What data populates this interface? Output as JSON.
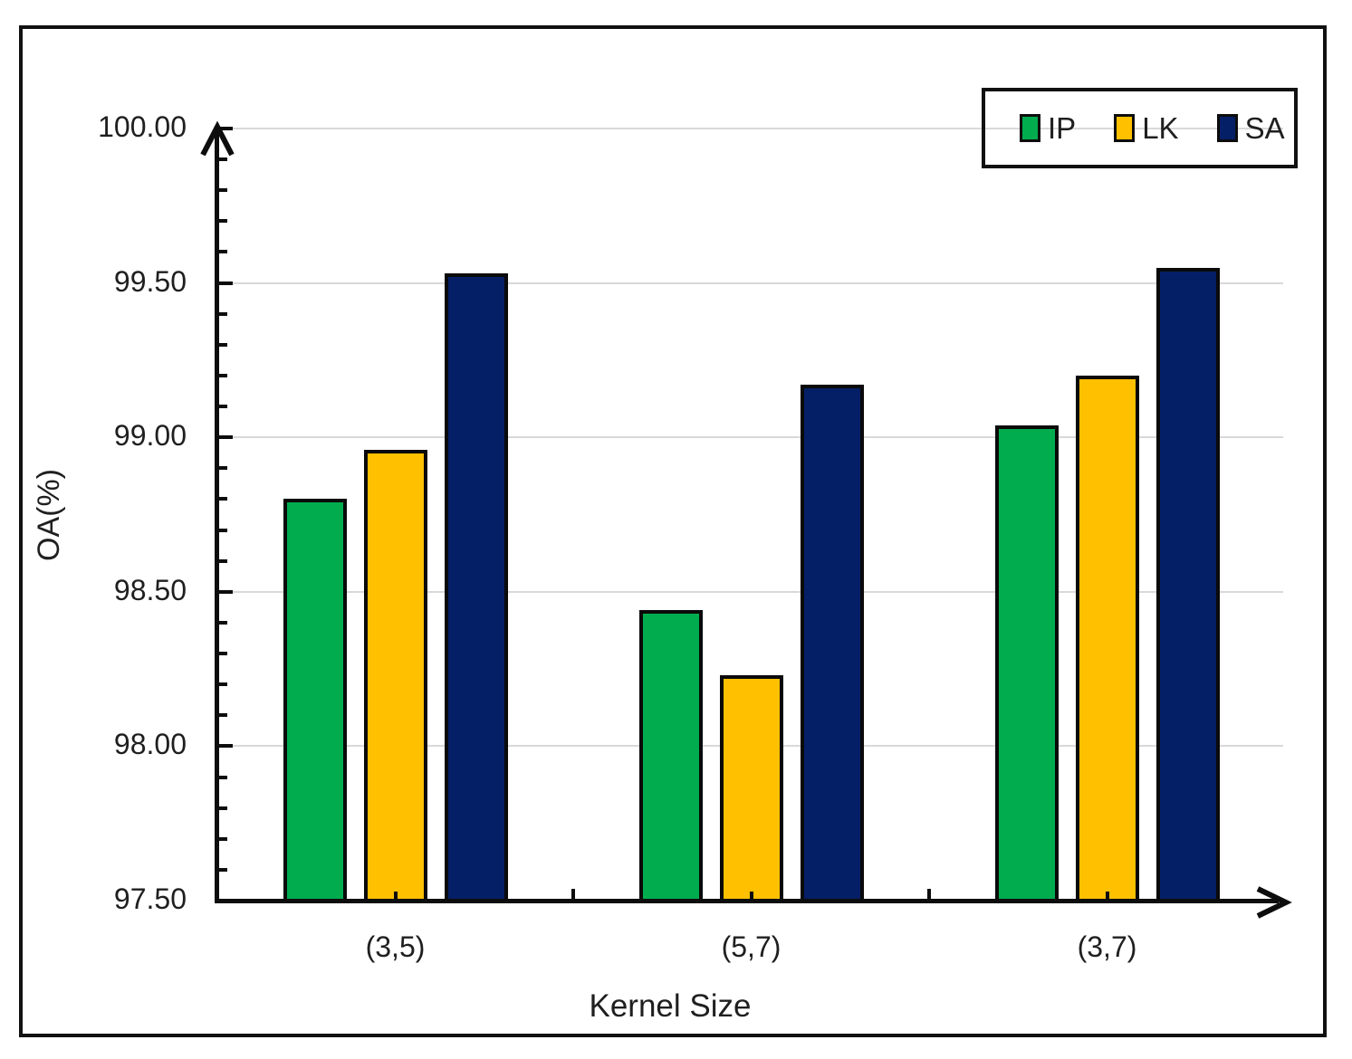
{
  "chart_data": {
    "type": "bar",
    "title": "",
    "xlabel": "Kernel Size",
    "ylabel": "OA(%)",
    "categories": [
      "(3,5)",
      "(5,7)",
      "(3,7)"
    ],
    "series": [
      {
        "name": "IP",
        "color": "#00AC4E",
        "values": [
          98.8,
          98.44,
          99.04
        ]
      },
      {
        "name": "LK",
        "color": "#FFC000",
        "values": [
          98.96,
          98.23,
          99.2
        ]
      },
      {
        "name": "SA",
        "color": "#051F66",
        "values": [
          99.53,
          99.17,
          99.55
        ]
      }
    ],
    "ylim": [
      97.5,
      100.0
    ],
    "ytick_step": 0.5,
    "ytick_labels": [
      "97.50",
      "98.00",
      "98.50",
      "99.00",
      "99.50",
      "100.00"
    ],
    "minor_tick_step": 0.1,
    "grid": true,
    "gridline_color": "#d9d9d9",
    "legend_position": "top-right"
  }
}
